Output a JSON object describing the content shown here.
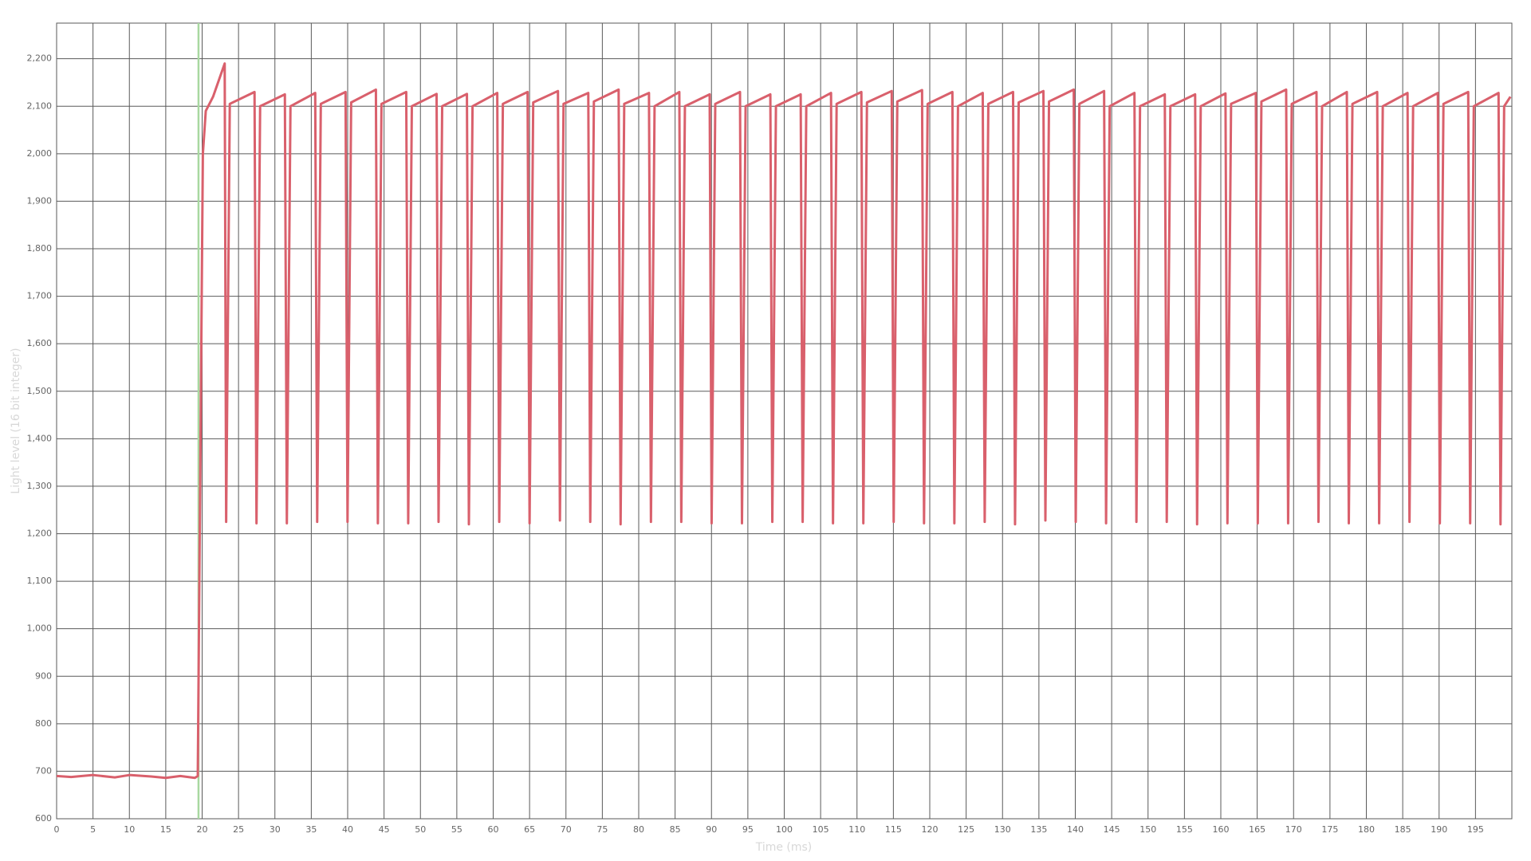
{
  "chart_data": {
    "type": "line",
    "xlabel": "Time (ms)",
    "ylabel": "Light level (16 bit integer)",
    "x": [
      0,
      2,
      5,
      8,
      10,
      13,
      15,
      17,
      19,
      19.4,
      20.1,
      20.5,
      21.5,
      23.1,
      23.3,
      23.8,
      27.2,
      27.47,
      27.97,
      31.37,
      31.64,
      32.14,
      35.54,
      35.81,
      36.31,
      39.71,
      39.98,
      40.48,
      43.88,
      44.15,
      44.65,
      48.05,
      48.32,
      48.82,
      52.22,
      52.49,
      52.99,
      56.39,
      56.66,
      57.16,
      60.56,
      60.83,
      61.33,
      64.73,
      65,
      65.5,
      68.9,
      69.17,
      69.67,
      73.07,
      73.34,
      73.84,
      77.24,
      77.51,
      78.01,
      81.41,
      81.68,
      82.18,
      85.58,
      85.85,
      86.35,
      89.75,
      90.02,
      90.52,
      93.92,
      94.19,
      94.69,
      98.09,
      98.36,
      98.86,
      102.26,
      102.53,
      103.03,
      106.43,
      106.7,
      107.2,
      110.6,
      110.87,
      111.37,
      114.77,
      115.04,
      115.54,
      118.94,
      119.21,
      119.71,
      123.11,
      123.38,
      123.88,
      127.28,
      127.55,
      128.05,
      131.45,
      131.72,
      132.22,
      135.62,
      135.89,
      136.39,
      139.79,
      140.06,
      140.56,
      143.96,
      144.23,
      144.73,
      148.13,
      148.4,
      148.9,
      152.3,
      152.57,
      153.07,
      156.47,
      156.74,
      157.24,
      160.64,
      160.91,
      161.41,
      164.81,
      165.08,
      165.58,
      168.98,
      169.25,
      169.75,
      173.15,
      173.42,
      173.92,
      177.32,
      177.59,
      178.09,
      181.49,
      181.76,
      182.26,
      185.66,
      185.93,
      186.43,
      189.83,
      190.1,
      190.6,
      194,
      194.27,
      194.77,
      198.17,
      198.44,
      198.94,
      199.8
    ],
    "series": [
      {
        "name": "Light level",
        "color": "#d9606c",
        "values": [
          690,
          688,
          692,
          687,
          692,
          689,
          686,
          690,
          686,
          690,
          2000,
          2090,
          2120,
          2190,
          1225,
          2105,
          2130,
          1222,
          2100,
          2125,
          1222,
          2100,
          2128,
          1225,
          2105,
          2130,
          1225,
          2108,
          2135,
          1222,
          2105,
          2130,
          1222,
          2100,
          2126,
          1225,
          2100,
          2126,
          1220,
          2100,
          2128,
          1225,
          2105,
          2130,
          1222,
          2108,
          2132,
          1228,
          2105,
          2128,
          1225,
          2110,
          2135,
          1220,
          2105,
          2128,
          1225,
          2100,
          2130,
          1225,
          2100,
          2125,
          1222,
          2105,
          2130,
          1222,
          2100,
          2125,
          1225,
          2100,
          2125,
          1225,
          2100,
          2128,
          1222,
          2105,
          2130,
          1222,
          2108,
          2132,
          1225,
          2110,
          2134,
          1222,
          2105,
          2130,
          1222,
          2100,
          2128,
          1225,
          2105,
          2130,
          1220,
          2108,
          2132,
          1228,
          2110,
          2135,
          1225,
          2105,
          2132,
          1222,
          2100,
          2128,
          1225,
          2100,
          2125,
          1225,
          2100,
          2125,
          1220,
          2100,
          2127,
          1222,
          2105,
          2128,
          1222,
          2110,
          2135,
          1222,
          2105,
          2130,
          1225,
          2100,
          2130,
          1222,
          2105,
          2130,
          1222,
          2100,
          2128,
          1225,
          2100,
          2128,
          1222,
          2105,
          2130,
          1222,
          2100,
          2128,
          1220,
          2100,
          2120
        ]
      }
    ],
    "marker": {
      "x": 19.5,
      "color": "#a8d8a0"
    },
    "xlim": [
      0,
      200
    ],
    "ylim": [
      600,
      2275
    ],
    "xticks": [
      0,
      5,
      10,
      15,
      20,
      25,
      30,
      35,
      40,
      45,
      50,
      55,
      60,
      65,
      70,
      75,
      80,
      85,
      90,
      95,
      100,
      105,
      110,
      115,
      120,
      125,
      130,
      135,
      140,
      145,
      150,
      155,
      160,
      165,
      170,
      175,
      180,
      185,
      190,
      195
    ],
    "yticks": [
      600,
      700,
      800,
      900,
      {
        "value": 1000,
        "label": "1,000"
      },
      {
        "value": 1100,
        "label": "1,100"
      },
      {
        "value": 1200,
        "label": "1,200"
      },
      {
        "value": 1300,
        "label": "1,300"
      },
      {
        "value": 1400,
        "label": "1,400"
      },
      {
        "value": 1500,
        "label": "1,500"
      },
      {
        "value": 1600,
        "label": "1,600"
      },
      {
        "value": 1700,
        "label": "1,700"
      },
      {
        "value": 1800,
        "label": "1,800"
      },
      {
        "value": 1900,
        "label": "1,900"
      },
      {
        "value": 2000,
        "label": "2,000"
      },
      {
        "value": 2100,
        "label": "2,100"
      },
      {
        "value": 2200,
        "label": "2,200"
      }
    ],
    "grid": true
  }
}
